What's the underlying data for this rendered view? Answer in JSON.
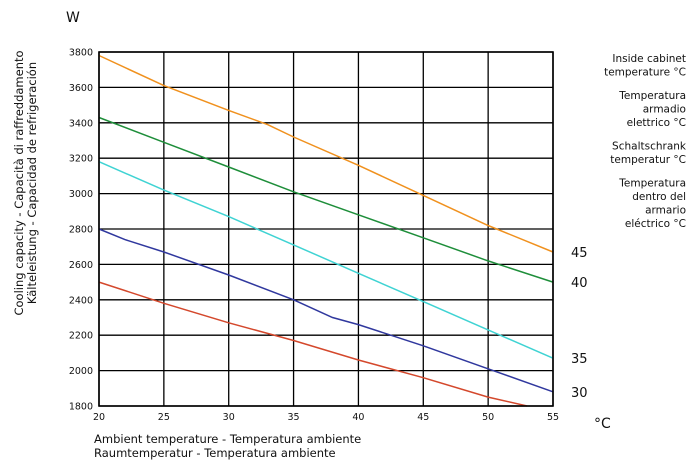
{
  "chart_data": {
    "type": "line",
    "y_unit": "W",
    "x_unit": "°C",
    "xlabel_lines": [
      "Ambient temperature - Temperatura ambiente",
      "Raumtemperatur - Temperatura ambiente"
    ],
    "ylabel_lines": [
      "Cooling capacity - Capacità di raffreddamento",
      "Kälteleistung - Capacidad de refrigeración"
    ],
    "xlim": [
      20,
      55
    ],
    "ylim": [
      1800,
      3800
    ],
    "x_ticks": [
      20,
      25,
      30,
      35,
      40,
      45,
      50,
      55
    ],
    "y_ticks": [
      1800,
      2000,
      2200,
      2400,
      2600,
      2800,
      3000,
      3200,
      3400,
      3600,
      3800
    ],
    "grid": true,
    "legend_title_lines": [
      "Inside cabinet",
      "temperature °C",
      "",
      "Temperatura",
      "armadio",
      "elettrico °C",
      "",
      "Schaltschrank",
      "temperatur °C",
      "",
      "Temperatura",
      "dentro del",
      "armario",
      "eléctrico °C"
    ],
    "series": [
      {
        "name": "45",
        "color": "#f0911e",
        "x": [
          20,
          25,
          30,
          33,
          35,
          40,
          45,
          50,
          55
        ],
        "y": [
          3780,
          3610,
          3470,
          3390,
          3320,
          3160,
          2990,
          2820,
          2670
        ]
      },
      {
        "name": "40",
        "color": "#1e8e3a",
        "x": [
          20,
          25,
          30,
          35,
          40,
          45,
          50,
          55
        ],
        "y": [
          3430,
          3290,
          3150,
          3010,
          2880,
          2750,
          2620,
          2500
        ]
      },
      {
        "name": "35",
        "color": "#3fd3d3",
        "x": [
          20,
          25,
          30,
          35,
          40,
          45,
          50,
          55
        ],
        "y": [
          3180,
          3020,
          2870,
          2710,
          2550,
          2390,
          2230,
          2070
        ]
      },
      {
        "name": "30",
        "color": "#30389e",
        "x": [
          20,
          22,
          25,
          30,
          35,
          38,
          40,
          45,
          50,
          55
        ],
        "y": [
          2800,
          2740,
          2670,
          2540,
          2400,
          2300,
          2260,
          2140,
          2010,
          1880
        ]
      },
      {
        "name": "",
        "color": "#d4482c",
        "x": [
          20,
          25,
          30,
          35,
          40,
          45,
          50,
          53
        ],
        "y": [
          2500,
          2380,
          2270,
          2170,
          2060,
          1960,
          1850,
          1800
        ]
      }
    ]
  }
}
